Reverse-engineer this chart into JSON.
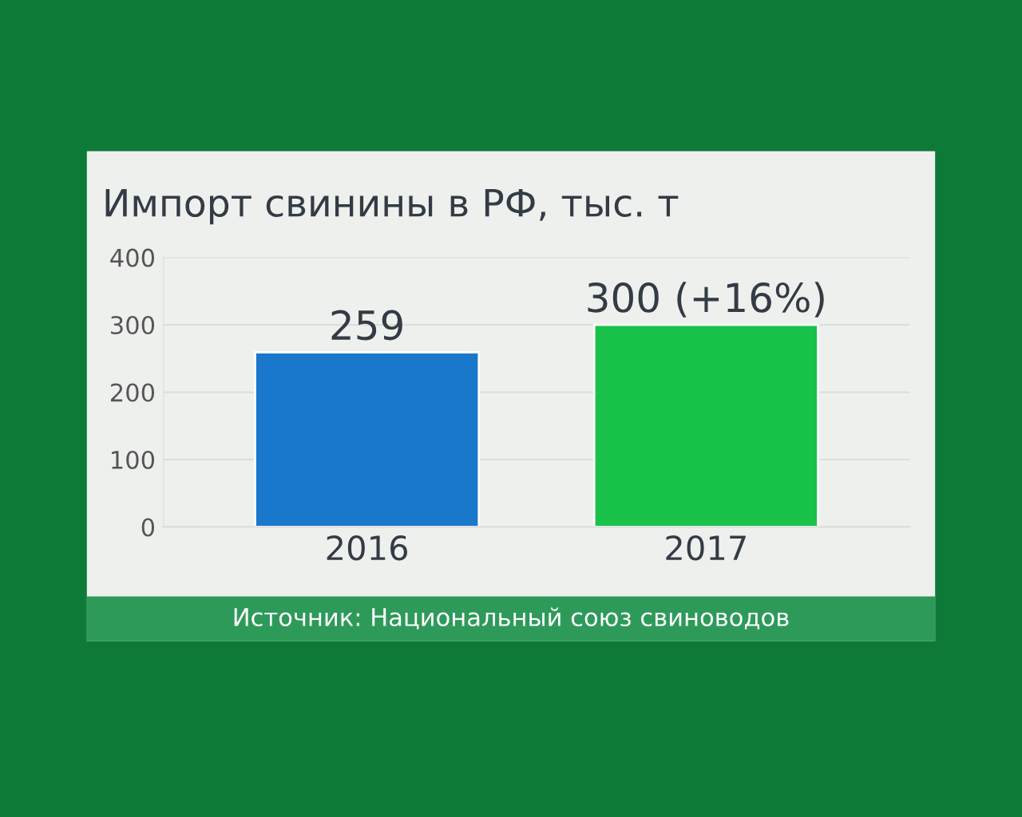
{
  "chart_data": {
    "type": "bar",
    "title": "Импорт свинины в РФ, тыс. т",
    "categories": [
      "2016",
      "2017"
    ],
    "values": [
      259,
      300
    ],
    "colors": [
      "#1a78cc",
      "#19c24a"
    ],
    "value_labels": [
      "259",
      "300 (+16%)"
    ],
    "ylim": [
      0,
      400
    ],
    "yticks": [
      0,
      100,
      200,
      300,
      400
    ],
    "grid": "y",
    "annotations": [
      "Источник: Национальный союз свиноводов"
    ]
  }
}
